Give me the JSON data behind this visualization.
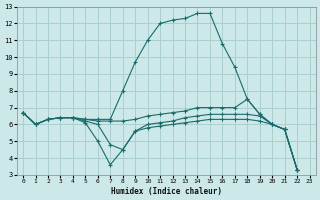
{
  "xlabel": "Humidex (Indice chaleur)",
  "bg_color": "#cce8e8",
  "grid_color": "#aacece",
  "line_color": "#1a6b6b",
  "xlim": [
    -0.5,
    23.5
  ],
  "ylim": [
    3,
    13
  ],
  "xticks": [
    0,
    1,
    2,
    3,
    4,
    5,
    6,
    7,
    8,
    9,
    10,
    11,
    12,
    13,
    14,
    15,
    16,
    17,
    18,
    19,
    20,
    21,
    22,
    23
  ],
  "yticks": [
    3,
    4,
    5,
    6,
    7,
    8,
    9,
    10,
    11,
    12,
    13
  ],
  "series": [
    {
      "x": [
        0,
        1,
        2,
        3,
        4,
        5,
        6,
        7,
        8,
        9,
        10,
        11,
        12,
        13,
        14,
        15,
        16,
        17,
        18,
        19,
        20,
        21,
        22
      ],
      "y": [
        6.7,
        6.0,
        6.3,
        6.4,
        6.4,
        6.3,
        6.3,
        6.3,
        8.0,
        9.7,
        11.0,
        12.0,
        12.2,
        12.3,
        12.6,
        12.6,
        10.8,
        9.4,
        7.5,
        6.6,
        6.0,
        5.7,
        3.3
      ]
    },
    {
      "x": [
        0,
        1,
        2,
        3,
        4,
        5,
        6,
        7,
        8,
        9,
        10,
        11,
        12,
        13,
        14,
        15,
        16,
        17,
        18,
        19,
        20,
        21,
        22
      ],
      "y": [
        6.7,
        6.0,
        6.3,
        6.4,
        6.4,
        6.3,
        6.2,
        6.2,
        6.2,
        6.3,
        6.5,
        6.6,
        6.7,
        6.8,
        7.0,
        7.0,
        7.0,
        7.0,
        7.5,
        6.6,
        6.0,
        5.7,
        3.3
      ]
    },
    {
      "x": [
        0,
        1,
        2,
        3,
        4,
        5,
        6,
        7,
        8,
        9,
        10,
        11,
        12,
        13,
        14,
        15,
        16,
        17,
        18,
        19,
        20,
        21,
        22
      ],
      "y": [
        6.7,
        6.0,
        6.3,
        6.4,
        6.4,
        6.2,
        6.0,
        4.8,
        4.5,
        5.6,
        6.0,
        6.1,
        6.2,
        6.4,
        6.5,
        6.6,
        6.6,
        6.6,
        6.6,
        6.5,
        6.0,
        5.7,
        3.3
      ]
    },
    {
      "x": [
        0,
        1,
        2,
        3,
        4,
        5,
        6,
        7,
        8,
        9,
        10,
        11,
        12,
        13,
        14,
        15,
        16,
        17,
        18,
        19,
        20,
        21,
        22
      ],
      "y": [
        6.7,
        6.0,
        6.3,
        6.4,
        6.4,
        6.1,
        5.0,
        3.6,
        4.5,
        5.6,
        5.8,
        5.9,
        6.0,
        6.1,
        6.2,
        6.3,
        6.3,
        6.3,
        6.3,
        6.2,
        6.0,
        5.7,
        3.3
      ]
    }
  ]
}
